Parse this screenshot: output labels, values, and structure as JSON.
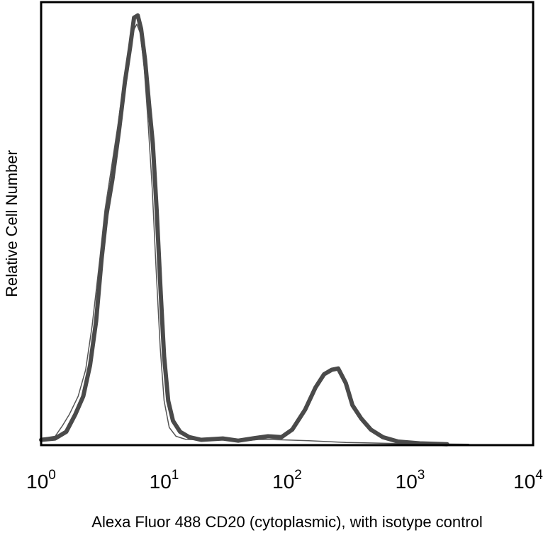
{
  "chart_data": {
    "type": "line",
    "title": "",
    "xlabel": "Alexa Fluor 488 CD20 (cytoplasmic), with isotype control",
    "ylabel": "Relative Cell Number",
    "x_scale": "log",
    "xlim": [
      1,
      10000
    ],
    "ylim": [
      0,
      100
    ],
    "x_ticks": [
      {
        "base": "10",
        "exp": "0"
      },
      {
        "base": "10",
        "exp": "1"
      },
      {
        "base": "10",
        "exp": "2"
      },
      {
        "base": "10",
        "exp": "3"
      },
      {
        "base": "10",
        "exp": "4"
      }
    ],
    "grid": false,
    "legend": "none",
    "series": [
      {
        "style": "thin",
        "color": "#555555",
        "points": [
          [
            1.0,
            1.5
          ],
          [
            1.3,
            2
          ],
          [
            1.5,
            4.5
          ],
          [
            1.7,
            7
          ],
          [
            2.0,
            11
          ],
          [
            2.3,
            17
          ],
          [
            2.6,
            27
          ],
          [
            3.0,
            42
          ],
          [
            3.3,
            53
          ],
          [
            3.7,
            62
          ],
          [
            4.2,
            72
          ],
          [
            4.7,
            82
          ],
          [
            5.2,
            89
          ],
          [
            5.6,
            93.5
          ],
          [
            6.0,
            95
          ],
          [
            6.4,
            93
          ],
          [
            6.9,
            85
          ],
          [
            7.4,
            73
          ],
          [
            8.0,
            58
          ],
          [
            8.6,
            40
          ],
          [
            9.3,
            22
          ],
          [
            10.0,
            10
          ],
          [
            11.0,
            4
          ],
          [
            12.5,
            2
          ],
          [
            15,
            1.3
          ],
          [
            20,
            1.2
          ],
          [
            30,
            1.2
          ],
          [
            45,
            1.0
          ],
          [
            60,
            1.3
          ],
          [
            90,
            1.2
          ],
          [
            150,
            1.0
          ],
          [
            300,
            0.6
          ],
          [
            1000,
            0.3
          ],
          [
            3000,
            0.2
          ]
        ]
      },
      {
        "style": "thick",
        "color": "#4a4a4a",
        "points": [
          [
            1.0,
            1.2
          ],
          [
            1.3,
            1.5
          ],
          [
            1.6,
            3
          ],
          [
            1.9,
            7
          ],
          [
            2.2,
            11
          ],
          [
            2.5,
            18
          ],
          [
            2.8,
            28
          ],
          [
            3.1,
            42
          ],
          [
            3.4,
            52
          ],
          [
            3.8,
            60
          ],
          [
            4.3,
            71
          ],
          [
            4.8,
            82
          ],
          [
            5.3,
            90
          ],
          [
            5.7,
            96.5
          ],
          [
            6.1,
            97
          ],
          [
            6.5,
            94
          ],
          [
            7.0,
            87
          ],
          [
            7.6,
            76
          ],
          [
            8.1,
            68
          ],
          [
            8.7,
            53
          ],
          [
            9.4,
            34
          ],
          [
            10.0,
            20
          ],
          [
            10.8,
            10
          ],
          [
            11.8,
            5.5
          ],
          [
            13.5,
            3
          ],
          [
            16,
            1.8
          ],
          [
            20,
            1.2
          ],
          [
            30,
            1.5
          ],
          [
            40,
            1.0
          ],
          [
            55,
            1.6
          ],
          [
            70,
            2.0
          ],
          [
            90,
            1.8
          ],
          [
            110,
            3.5
          ],
          [
            140,
            8
          ],
          [
            170,
            13
          ],
          [
            200,
            16
          ],
          [
            230,
            17
          ],
          [
            260,
            17.3
          ],
          [
            300,
            14
          ],
          [
            340,
            9
          ],
          [
            400,
            6
          ],
          [
            480,
            3.5
          ],
          [
            600,
            1.8
          ],
          [
            800,
            0.8
          ],
          [
            1200,
            0.4
          ],
          [
            2000,
            0.2
          ]
        ]
      }
    ]
  }
}
